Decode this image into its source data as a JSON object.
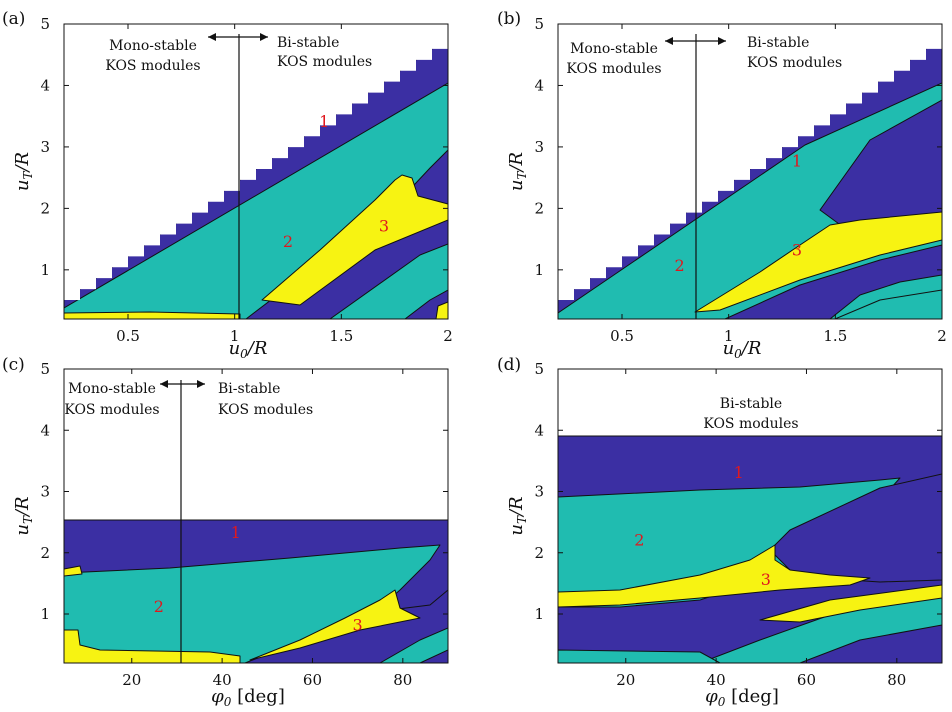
{
  "figure": {
    "description_free": true,
    "colors": {
      "region1": "#3b2fa3",
      "region2": "#20bcb0",
      "region3": "#f7f312",
      "outline": "#111111",
      "label": "#e0181e"
    }
  },
  "chart_data": [
    {
      "panel": "(a)",
      "type": "heatmap",
      "xlabel": "u_0/R",
      "ylabel": "u_T/R",
      "xlim": [
        0.2,
        2
      ],
      "ylim": [
        0.2,
        5
      ],
      "xticks": [
        0.5,
        1,
        1.5,
        2
      ],
      "xtick_labels": [
        "0.5",
        "1",
        "1.5",
        "2"
      ],
      "yticks": [
        1,
        2,
        3,
        4,
        5
      ],
      "ytick_labels": [
        "1",
        "2",
        "3",
        "4",
        "5"
      ],
      "divider_x": 1.02,
      "annotations": [
        "Mono-stable",
        "KOS modules",
        "Bi-stable",
        "KOS modules"
      ],
      "regions": [
        {
          "label": "1",
          "x": 1.42,
          "y": 3.42
        },
        {
          "label": "2",
          "x": 1.25,
          "y": 1.47
        },
        {
          "label": "3",
          "x": 1.7,
          "y": 1.72
        }
      ]
    },
    {
      "panel": "(b)",
      "type": "heatmap",
      "xlabel": "u_0/R",
      "ylabel": "u_T/R",
      "xlim": [
        0.2,
        2
      ],
      "ylim": [
        0.2,
        5
      ],
      "xticks": [
        0.5,
        1,
        1.5,
        2
      ],
      "xtick_labels": [
        "0.5",
        "1",
        "1.5",
        "2"
      ],
      "yticks": [
        1,
        2,
        3,
        4,
        5
      ],
      "ytick_labels": [
        "1",
        "2",
        "3",
        "4",
        "5"
      ],
      "divider_x": 0.85,
      "annotations": [
        "Mono-stable",
        "KOS modules",
        "Bi-stable",
        "KOS modules"
      ],
      "regions": [
        {
          "label": "1",
          "x": 1.32,
          "y": 2.78
        },
        {
          "label": "2",
          "x": 0.77,
          "y": 1.08
        },
        {
          "label": "3",
          "x": 1.32,
          "y": 1.33
        }
      ]
    },
    {
      "panel": "(c)",
      "type": "heatmap",
      "xlabel": "φ_0 [deg]",
      "ylabel": "u_T/R",
      "xlim": [
        5,
        90
      ],
      "ylim": [
        0.2,
        5
      ],
      "xticks": [
        20,
        40,
        60,
        80
      ],
      "xtick_labels": [
        "20",
        "40",
        "60",
        "80"
      ],
      "yticks": [
        1,
        2,
        3,
        4,
        5
      ],
      "ytick_labels": [
        "1",
        "2",
        "3",
        "4",
        "5"
      ],
      "divider_x": 31,
      "annotations": [
        "Mono-stable",
        "KOS modules",
        "Bi-stable",
        "KOS modules"
      ],
      "regions": [
        {
          "label": "1",
          "x": 43,
          "y": 2.34
        },
        {
          "label": "2",
          "x": 26,
          "y": 1.13
        },
        {
          "label": "3",
          "x": 70,
          "y": 0.83
        }
      ]
    },
    {
      "panel": "(d)",
      "type": "heatmap",
      "xlabel": "φ_0 [deg]",
      "ylabel": "u_T/R",
      "xlim": [
        5,
        90
      ],
      "ylim": [
        0.2,
        5
      ],
      "xticks": [
        20,
        40,
        60,
        80
      ],
      "xtick_labels": [
        "20",
        "40",
        "60",
        "80"
      ],
      "yticks": [
        1,
        2,
        3,
        4,
        5
      ],
      "ytick_labels": [
        "1",
        "2",
        "3",
        "4",
        "5"
      ],
      "divider_x": null,
      "annotations": [
        "Bi-stable",
        "KOS modules"
      ],
      "regions": [
        {
          "label": "1",
          "x": 45,
          "y": 3.32
        },
        {
          "label": "2",
          "x": 23,
          "y": 2.22
        },
        {
          "label": "3",
          "x": 51,
          "y": 1.57
        }
      ]
    }
  ]
}
